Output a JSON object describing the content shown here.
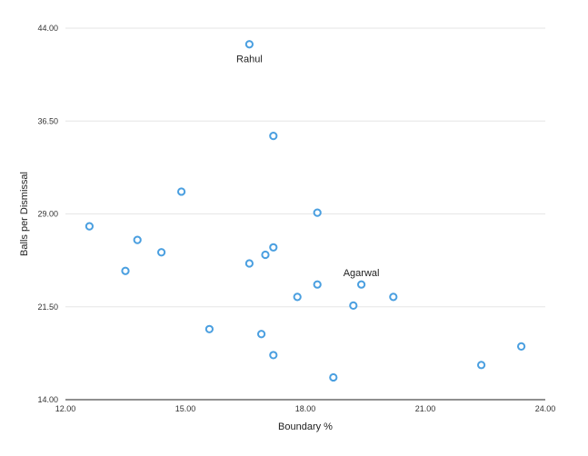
{
  "chart_data": {
    "type": "scatter",
    "xlabel": "Boundary %",
    "ylabel": "Balls per Dismissal",
    "xlim": [
      12,
      24
    ],
    "ylim": [
      14,
      44
    ],
    "x_ticks": [
      "12.00",
      "15.00",
      "18.00",
      "21.00",
      "24.00"
    ],
    "y_ticks": [
      "14.00",
      "21.50",
      "29.00",
      "36.50",
      "44.00"
    ],
    "grid": "horizontal",
    "marker_color": "#4a9fe0",
    "series": [
      {
        "points": [
          {
            "x": 16.6,
            "y": 42.7,
            "label": "Rahul"
          },
          {
            "x": 17.2,
            "y": 35.3
          },
          {
            "x": 14.9,
            "y": 30.8
          },
          {
            "x": 18.3,
            "y": 29.1
          },
          {
            "x": 12.6,
            "y": 28.0
          },
          {
            "x": 13.8,
            "y": 26.9
          },
          {
            "x": 14.4,
            "y": 25.9
          },
          {
            "x": 17.2,
            "y": 26.3
          },
          {
            "x": 17.0,
            "y": 25.7
          },
          {
            "x": 16.6,
            "y": 25.0
          },
          {
            "x": 13.5,
            "y": 24.4
          },
          {
            "x": 19.4,
            "y": 23.3,
            "label": "Agarwal"
          },
          {
            "x": 18.3,
            "y": 23.3
          },
          {
            "x": 17.8,
            "y": 22.3
          },
          {
            "x": 20.2,
            "y": 22.3
          },
          {
            "x": 19.2,
            "y": 21.6
          },
          {
            "x": 15.6,
            "y": 19.7
          },
          {
            "x": 16.9,
            "y": 19.3
          },
          {
            "x": 17.2,
            "y": 17.6
          },
          {
            "x": 23.4,
            "y": 18.3
          },
          {
            "x": 22.4,
            "y": 16.8
          },
          {
            "x": 18.7,
            "y": 15.8
          }
        ]
      }
    ]
  }
}
